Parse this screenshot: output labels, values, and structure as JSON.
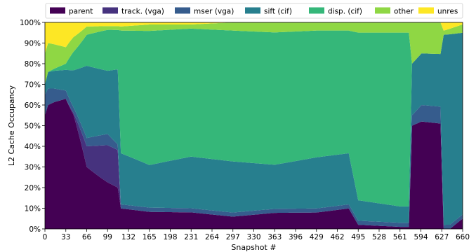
{
  "chart_data": {
    "type": "area",
    "xlabel": "Snapshot #",
    "ylabel": "L2 Cache Occupancy",
    "xlim": [
      0,
      660
    ],
    "ylim": [
      0,
      100
    ],
    "x_ticks": [
      0,
      33,
      66,
      99,
      132,
      165,
      198,
      231,
      264,
      297,
      330,
      363,
      396,
      429,
      462,
      495,
      528,
      561,
      594,
      627,
      660
    ],
    "y_ticks": [
      0,
      10,
      20,
      30,
      40,
      50,
      60,
      70,
      80,
      90,
      100
    ],
    "y_tick_format": "percent",
    "legend_position": "top",
    "grid": false,
    "series": [
      {
        "name": "parent",
        "color": "#440154",
        "x": [
          0,
          5,
          15,
          33,
          45,
          66,
          99,
          115,
          120,
          165,
          231,
          297,
          363,
          429,
          480,
          495,
          561,
          575,
          580,
          595,
          625,
          630,
          640,
          660
        ],
        "values": [
          55,
          60,
          62,
          63,
          62,
          30,
          25,
          22,
          10,
          8,
          8,
          6,
          8,
          8,
          10,
          2,
          1,
          1,
          50,
          52,
          50,
          0,
          0,
          5
        ]
      },
      {
        "name": "track. (vga)",
        "color": "#46327e",
        "x": [
          0,
          33,
          45,
          66,
          99,
          115,
          120,
          165,
          231,
          297,
          363,
          429,
          480,
          495,
          561,
          575,
          580,
          595,
          625,
          630,
          660
        ],
        "values": [
          0,
          0,
          1,
          10,
          20,
          20,
          0,
          0,
          0,
          0,
          0,
          0,
          0,
          0,
          0,
          0,
          0,
          0,
          0,
          0,
          0
        ]
      },
      {
        "name": "mser (vga)",
        "color": "#365c8d",
        "x": [
          0,
          5,
          33,
          45,
          66,
          99,
          120,
          165,
          231,
          297,
          363,
          429,
          480,
          495,
          561,
          575,
          580,
          595,
          625,
          630,
          660
        ],
        "values": [
          10,
          8,
          4,
          3,
          4,
          6,
          2,
          2,
          2,
          2,
          2,
          2,
          2,
          2,
          2,
          2,
          5,
          8,
          8,
          2,
          2
        ]
      },
      {
        "name": "sift (cif)",
        "color": "#277f8e",
        "x": [
          0,
          5,
          33,
          45,
          66,
          99,
          115,
          120,
          165,
          231,
          297,
          363,
          429,
          480,
          495,
          561,
          575,
          580,
          595,
          625,
          630,
          660
        ],
        "values": [
          5,
          8,
          10,
          20,
          35,
          34,
          40,
          25,
          20,
          25,
          25,
          22,
          25,
          25,
          10,
          8,
          8,
          25,
          25,
          25,
          92,
          88
        ]
      },
      {
        "name": "disp. (cif)",
        "color": "#35b779",
        "x": [
          0,
          5,
          33,
          45,
          66,
          99,
          115,
          120,
          165,
          231,
          297,
          363,
          429,
          480,
          495,
          561,
          575,
          580,
          595,
          625,
          630,
          660
        ],
        "values": [
          0,
          0,
          3,
          10,
          15,
          22,
          21,
          60,
          63,
          62,
          64,
          66,
          62,
          60,
          82,
          85,
          85,
          0,
          0,
          0,
          0,
          0
        ]
      },
      {
        "name": "other",
        "color": "#8fd744",
        "x": [
          0,
          5,
          33,
          45,
          66,
          99,
          115,
          120,
          165,
          231,
          297,
          363,
          429,
          480,
          495,
          561,
          575,
          580,
          595,
          625,
          630,
          660
        ],
        "values": [
          15,
          14,
          8,
          8,
          4,
          2,
          2,
          2,
          3,
          2,
          4,
          5,
          4,
          4,
          5,
          5,
          5,
          20,
          15,
          15,
          2,
          4
        ]
      },
      {
        "name": "unres",
        "color": "#fde725",
        "x": [
          0,
          5,
          33,
          45,
          66,
          99,
          115,
          120,
          165,
          231,
          297,
          363,
          429,
          480,
          495,
          561,
          575,
          580,
          595,
          625,
          630,
          660
        ],
        "values": [
          15,
          10,
          12,
          8,
          2,
          2,
          2,
          2,
          1,
          1,
          0,
          0,
          0,
          0,
          0,
          0,
          0,
          0,
          0,
          0,
          4,
          1
        ]
      }
    ]
  }
}
